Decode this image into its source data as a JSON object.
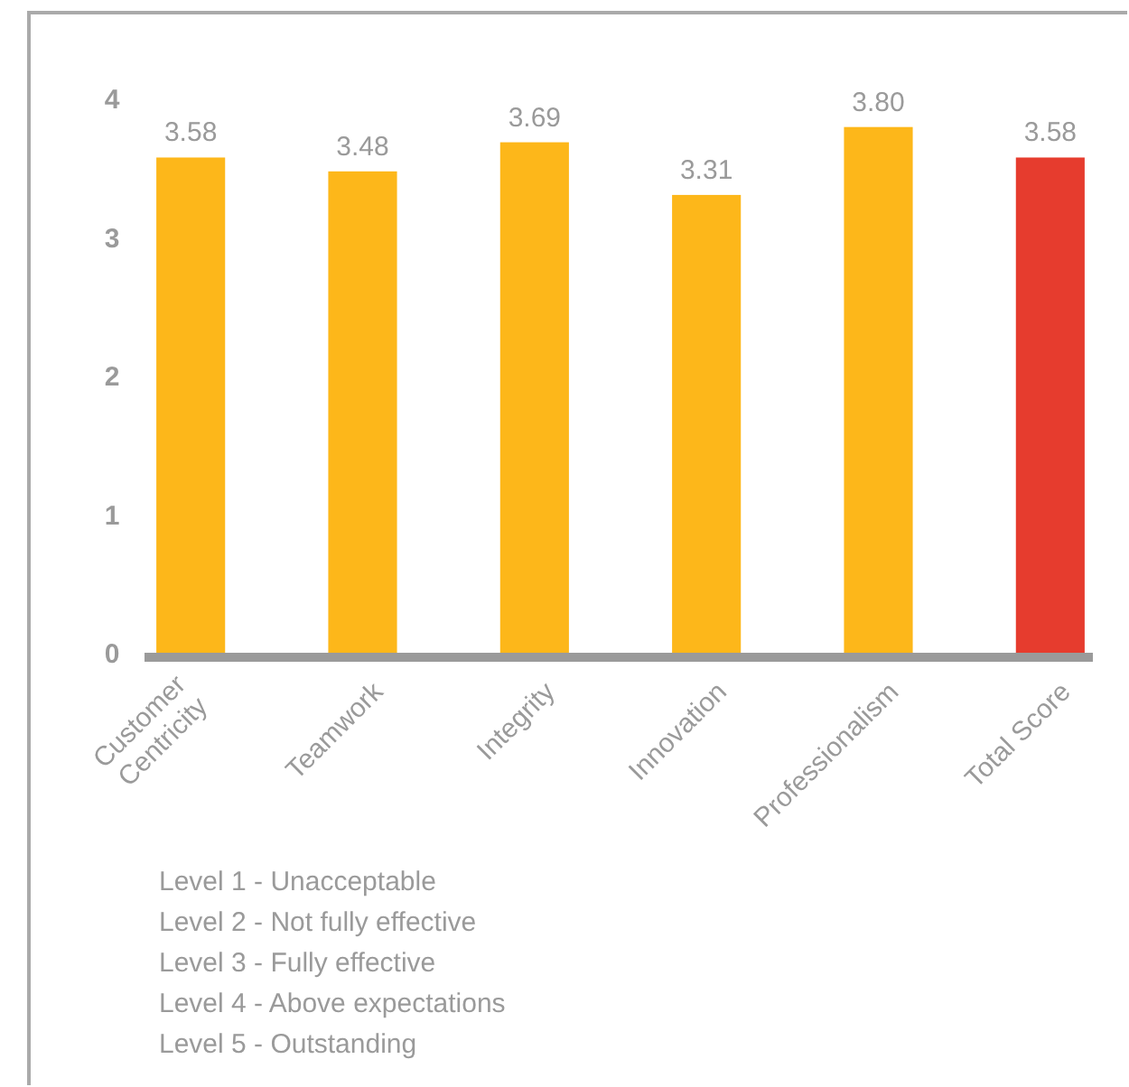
{
  "chart_data": {
    "type": "bar",
    "categories": [
      "Customer\nCentricity",
      "Teamwork",
      "Integrity",
      "Innovation",
      "Professionalism",
      "Total Score"
    ],
    "values": [
      3.58,
      3.48,
      3.69,
      3.31,
      3.8,
      3.58
    ],
    "colors": [
      "#fdb71a",
      "#fdb71a",
      "#fdb71a",
      "#fdb71a",
      "#fdb71a",
      "#e63c2e"
    ],
    "ylim": [
      0,
      4
    ],
    "yticks": [
      0,
      1,
      2,
      3,
      4
    ],
    "value_labels": [
      "3.58",
      "3.48",
      "3.69",
      "3.31",
      "3.80",
      "3.58"
    ],
    "grid": false,
    "annotations": [
      "Level 1 - Unacceptable",
      "Level 2 - Not fully effective",
      "Level 3 - Fully effective",
      "Level 4 - Above expectations",
      "Level 5 - Outstanding"
    ]
  }
}
